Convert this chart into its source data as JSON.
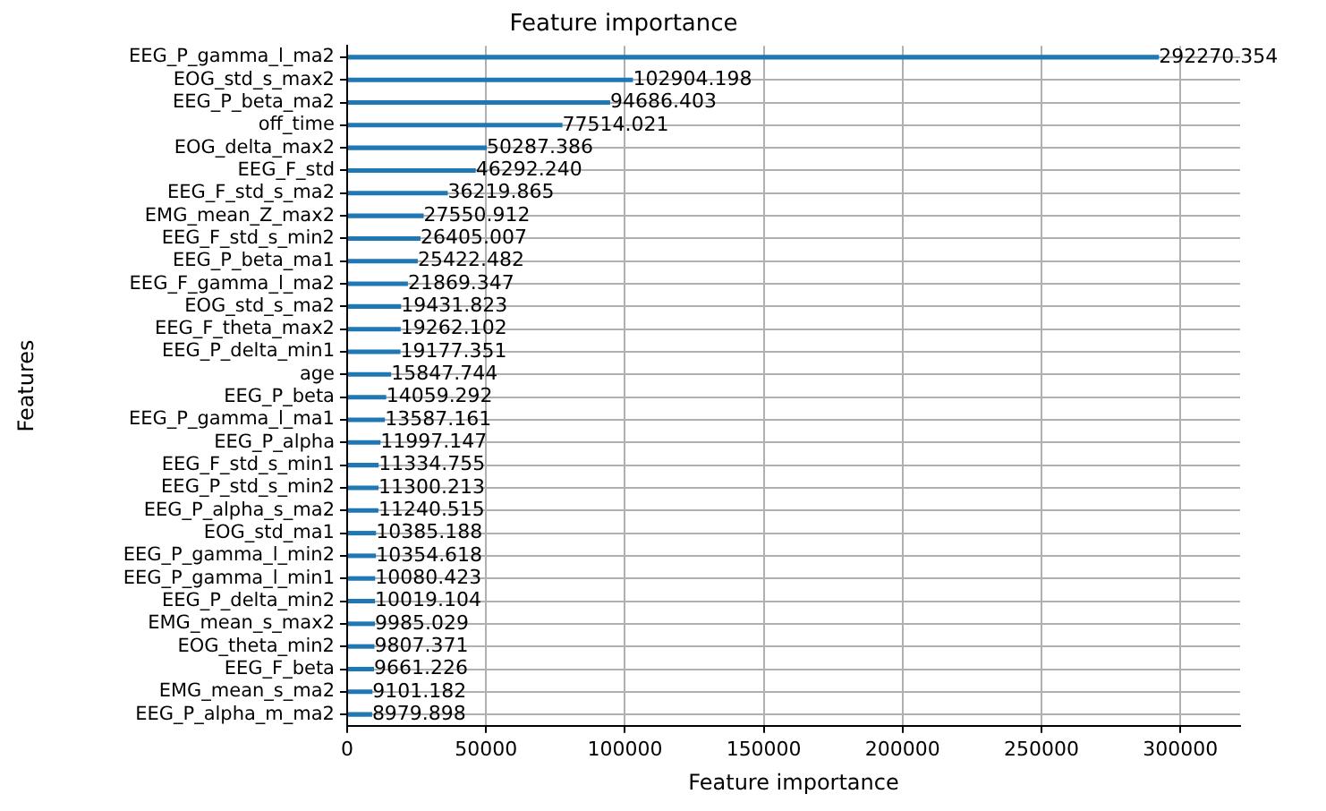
{
  "chart_data": {
    "type": "bar",
    "orientation": "horizontal",
    "title": "Feature importance",
    "xlabel": "Feature importance",
    "ylabel": "Features",
    "categories": [
      "EEG_P_gamma_l_ma2",
      "EOG_std_s_max2",
      "EEG_P_beta_ma2",
      "off_time",
      "EOG_delta_max2",
      "EEG_F_std",
      "EEG_F_std_s_ma2",
      "EMG_mean_Z_max2",
      "EEG_F_std_s_min2",
      "EEG_P_beta_ma1",
      "EEG_F_gamma_l_ma2",
      "EOG_std_s_ma2",
      "EEG_F_theta_max2",
      "EEG_P_delta_min1",
      "age",
      "EEG_P_beta",
      "EEG_P_gamma_l_ma1",
      "EEG_P_alpha",
      "EEG_F_std_s_min1",
      "EEG_P_std_s_min2",
      "EEG_P_alpha_s_ma2",
      "EOG_std_ma1",
      "EEG_P_gamma_l_min2",
      "EEG_P_gamma_l_min1",
      "EEG_P_delta_min2",
      "EMG_mean_s_max2",
      "EOG_theta_min2",
      "EEG_F_beta",
      "EMG_mean_s_ma2",
      "EEG_P_alpha_m_ma2"
    ],
    "values": [
      292270.354,
      102904.198,
      94686.403,
      77514.021,
      50287.386,
      46292.24,
      36219.865,
      27550.912,
      26405.007,
      25422.482,
      21869.347,
      19431.823,
      19262.102,
      19177.351,
      15847.744,
      14059.292,
      13587.161,
      11997.147,
      11334.755,
      11300.213,
      11240.515,
      10385.188,
      10354.618,
      10080.423,
      10019.104,
      9985.029,
      9807.371,
      9661.226,
      9101.182,
      8979.898
    ],
    "value_labels": [
      "292270.354",
      "102904.198",
      "94686.403",
      "77514.021",
      "50287.386",
      "46292.240",
      "36219.865",
      "27550.912",
      "26405.007",
      "25422.482",
      "21869.347",
      "19431.823",
      "19262.102",
      "19177.351",
      "15847.744",
      "14059.292",
      "13587.161",
      "11997.147",
      "11334.755",
      "11300.213",
      "11240.515",
      "10385.188",
      "10354.618",
      "10080.423",
      "10019.104",
      "9985.029",
      "9807.371",
      "9661.226",
      "9101.182",
      "8979.898"
    ],
    "color": "#1f77b4",
    "xlim": [
      0,
      321500
    ],
    "xticks": [
      0,
      50000,
      100000,
      150000,
      200000,
      250000,
      300000
    ],
    "grid": true,
    "legend": false
  }
}
